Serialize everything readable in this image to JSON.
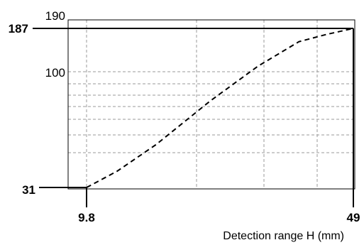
{
  "chart_data": {
    "type": "line",
    "title": "",
    "xlabel": "Detection range H (mm)",
    "ylabel": "",
    "xlim": [
      9.8,
      49
    ],
    "ylim": [
      31,
      190
    ],
    "grid": true,
    "series": [
      {
        "line_style": "dashed",
        "x": [
          9.8,
          14.3,
          20,
          28,
          35,
          41,
          45,
          49
        ],
        "y": [
          31,
          47,
          73,
          116,
          150,
          174,
          181,
          187
        ]
      }
    ],
    "y_ticks": [
      {
        "value": 190,
        "label": "190",
        "bold": false
      },
      {
        "value": 187,
        "label": "187",
        "bold": true
      },
      {
        "value": 100,
        "label": "100",
        "bold": false
      },
      {
        "value": 31,
        "label": "31",
        "bold": true
      }
    ],
    "x_ticks": [
      {
        "value": 9.8,
        "label": "9.8",
        "bold": true
      },
      {
        "value": 49,
        "label": "49",
        "bold": true
      }
    ],
    "reference_lines": [
      {
        "x": 9.8,
        "y": 31
      },
      {
        "x": 49,
        "y": 187
      }
    ]
  }
}
